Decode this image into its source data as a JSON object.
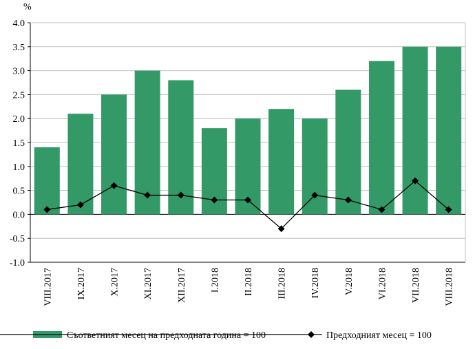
{
  "chart_data": {
    "type": "bar+line",
    "unit_label": "%",
    "ylim": [
      -1.0,
      4.0
    ],
    "y_ticks": [
      "4.0",
      "3.5",
      "3.0",
      "2.5",
      "2.0",
      "1.5",
      "1.0",
      "0.5",
      "0.0",
      "-0.5",
      "-1.0"
    ],
    "y_tick_values": [
      4.0,
      3.5,
      3.0,
      2.5,
      2.0,
      1.5,
      1.0,
      0.5,
      0.0,
      -0.5,
      -1.0
    ],
    "categories": [
      "VIII.2017",
      "IX.2017",
      "X.2017",
      "XI.2017",
      "XII.2017",
      "I.2018",
      "II.2018",
      "III.2018",
      "IV.2018",
      "V.2018",
      "VI.2018",
      "VII.2018",
      "VIII.2018"
    ],
    "series": [
      {
        "name": "Съответният месец на предходната година = 100",
        "type": "bar",
        "color": "#339966",
        "values": [
          1.4,
          2.1,
          2.5,
          3.0,
          2.8,
          1.8,
          2.0,
          2.2,
          2.0,
          2.6,
          3.2,
          3.5,
          3.5
        ]
      },
      {
        "name": "Предходният месец = 100",
        "type": "line",
        "color": "#000000",
        "marker": "diamond",
        "values": [
          0.1,
          0.2,
          0.6,
          0.4,
          0.4,
          0.3,
          0.3,
          -0.3,
          0.4,
          0.3,
          0.1,
          0.7,
          0.1
        ]
      }
    ],
    "grid": true,
    "legend_position": "bottom"
  }
}
